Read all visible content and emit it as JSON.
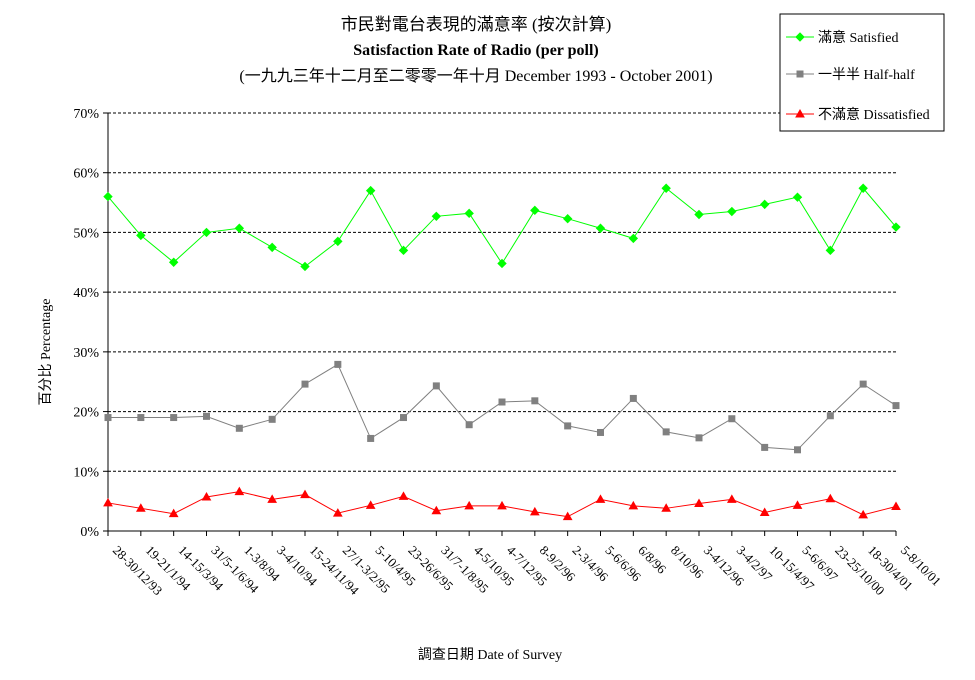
{
  "chart_data": {
    "type": "line",
    "title_zh": "市民對電台表現的滿意率 (按次計算)",
    "title_en": "Satisfaction Rate of Radio (per poll)",
    "subtitle": "(一九九三年十二月至二零零一年十月 December 1993 - October 2001)",
    "ylabel": "百分比 Percentage",
    "xlabel": "調查日期 Date of Survey",
    "ylim": [
      0,
      70
    ],
    "yticks": [
      "0%",
      "10%",
      "20%",
      "30%",
      "40%",
      "50%",
      "60%",
      "70%"
    ],
    "grid": true,
    "legend_position": "top-right",
    "categories": [
      "28-30/12/93",
      "19-21/1/94",
      "14-15/3/94",
      "31/5-1/6/94",
      "1-3/8/94",
      "3-4/10/94",
      "15-24/11/94",
      "27/1-3/2/95",
      "5-10/4/95",
      "23-26/6/95",
      "31/7-1/8/95",
      "4-5/10/95",
      "4-7/12/95",
      "8-9/2/96",
      "2-3/4/96",
      "5-6/6/96",
      "6/8/96",
      "8/10/96",
      "3-4/12/96",
      "3-4/2/97",
      "10-15/4/97",
      "5-6/6/97",
      "23-25/10/00",
      "18-30/4/01",
      "5-8/10/01"
    ],
    "series": [
      {
        "name": "滿意 Satisfied",
        "color": "#00ff00",
        "marker": "diamond",
        "values": [
          56,
          49.5,
          45,
          50,
          50.7,
          47.5,
          44.3,
          48.5,
          57,
          47,
          52.7,
          53.2,
          44.8,
          53.7,
          52.3,
          50.7,
          49,
          57.4,
          53,
          53.5,
          54.7,
          55.9,
          47,
          57.4,
          50.9
        ]
      },
      {
        "name": "一半半 Half-half",
        "color": "#808080",
        "marker": "square",
        "values": [
          19,
          19,
          19,
          19.2,
          17.2,
          18.7,
          24.6,
          27.9,
          15.5,
          19,
          24.3,
          17.8,
          21.6,
          21.8,
          17.6,
          16.5,
          22.2,
          16.6,
          15.6,
          18.8,
          14,
          13.6,
          19.3,
          24.6,
          21
        ]
      },
      {
        "name": "不滿意 Dissatisfied",
        "color": "#ff0000",
        "marker": "triangle",
        "values": [
          4.7,
          3.8,
          2.9,
          5.7,
          6.6,
          5.3,
          6.1,
          3,
          4.3,
          5.8,
          3.4,
          4.2,
          4.2,
          3.2,
          2.4,
          5.3,
          4.2,
          3.8,
          4.6,
          5.3,
          3.1,
          4.3,
          5.4,
          2.7,
          4.1
        ]
      }
    ]
  }
}
